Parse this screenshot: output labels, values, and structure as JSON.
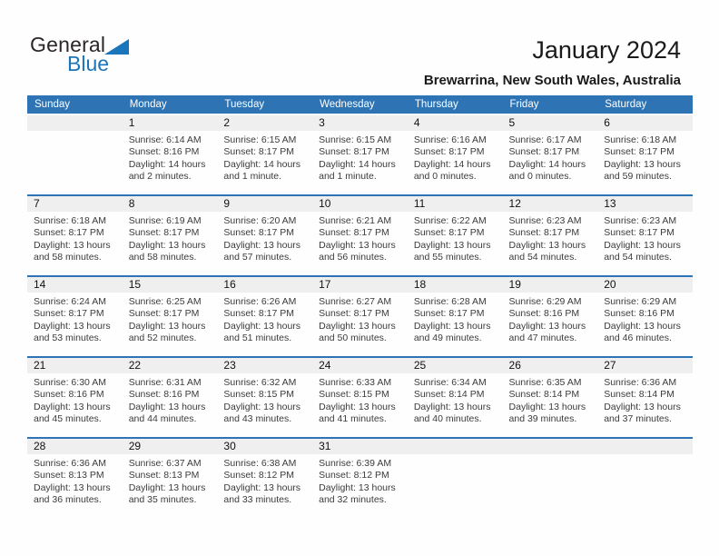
{
  "logo": {
    "general": "General",
    "blue": "Blue"
  },
  "header": {
    "title": "January 2024",
    "subtitle": "Brewarrina, New South Wales, Australia"
  },
  "colors": {
    "header_blue": "#2E74B5",
    "band_gray": "#EFEFEF",
    "logo_blue": "#1B75BB"
  },
  "labels": {
    "sunrise": "Sunrise:",
    "sunset": "Sunset:",
    "daylight": "Daylight:"
  },
  "weekdays": [
    "Sunday",
    "Monday",
    "Tuesday",
    "Wednesday",
    "Thursday",
    "Friday",
    "Saturday"
  ],
  "weeks": [
    [
      {},
      {
        "day": "1",
        "sunrise": "6:14 AM",
        "sunset": "8:16 PM",
        "daylight": "14 hours and 2 minutes."
      },
      {
        "day": "2",
        "sunrise": "6:15 AM",
        "sunset": "8:17 PM",
        "daylight": "14 hours and 1 minute."
      },
      {
        "day": "3",
        "sunrise": "6:15 AM",
        "sunset": "8:17 PM",
        "daylight": "14 hours and 1 minute."
      },
      {
        "day": "4",
        "sunrise": "6:16 AM",
        "sunset": "8:17 PM",
        "daylight": "14 hours and 0 minutes."
      },
      {
        "day": "5",
        "sunrise": "6:17 AM",
        "sunset": "8:17 PM",
        "daylight": "14 hours and 0 minutes."
      },
      {
        "day": "6",
        "sunrise": "6:18 AM",
        "sunset": "8:17 PM",
        "daylight": "13 hours and 59 minutes."
      }
    ],
    [
      {
        "day": "7",
        "sunrise": "6:18 AM",
        "sunset": "8:17 PM",
        "daylight": "13 hours and 58 minutes."
      },
      {
        "day": "8",
        "sunrise": "6:19 AM",
        "sunset": "8:17 PM",
        "daylight": "13 hours and 58 minutes."
      },
      {
        "day": "9",
        "sunrise": "6:20 AM",
        "sunset": "8:17 PM",
        "daylight": "13 hours and 57 minutes."
      },
      {
        "day": "10",
        "sunrise": "6:21 AM",
        "sunset": "8:17 PM",
        "daylight": "13 hours and 56 minutes."
      },
      {
        "day": "11",
        "sunrise": "6:22 AM",
        "sunset": "8:17 PM",
        "daylight": "13 hours and 55 minutes."
      },
      {
        "day": "12",
        "sunrise": "6:23 AM",
        "sunset": "8:17 PM",
        "daylight": "13 hours and 54 minutes."
      },
      {
        "day": "13",
        "sunrise": "6:23 AM",
        "sunset": "8:17 PM",
        "daylight": "13 hours and 54 minutes."
      }
    ],
    [
      {
        "day": "14",
        "sunrise": "6:24 AM",
        "sunset": "8:17 PM",
        "daylight": "13 hours and 53 minutes."
      },
      {
        "day": "15",
        "sunrise": "6:25 AM",
        "sunset": "8:17 PM",
        "daylight": "13 hours and 52 minutes."
      },
      {
        "day": "16",
        "sunrise": "6:26 AM",
        "sunset": "8:17 PM",
        "daylight": "13 hours and 51 minutes."
      },
      {
        "day": "17",
        "sunrise": "6:27 AM",
        "sunset": "8:17 PM",
        "daylight": "13 hours and 50 minutes."
      },
      {
        "day": "18",
        "sunrise": "6:28 AM",
        "sunset": "8:17 PM",
        "daylight": "13 hours and 49 minutes."
      },
      {
        "day": "19",
        "sunrise": "6:29 AM",
        "sunset": "8:16 PM",
        "daylight": "13 hours and 47 minutes."
      },
      {
        "day": "20",
        "sunrise": "6:29 AM",
        "sunset": "8:16 PM",
        "daylight": "13 hours and 46 minutes."
      }
    ],
    [
      {
        "day": "21",
        "sunrise": "6:30 AM",
        "sunset": "8:16 PM",
        "daylight": "13 hours and 45 minutes."
      },
      {
        "day": "22",
        "sunrise": "6:31 AM",
        "sunset": "8:16 PM",
        "daylight": "13 hours and 44 minutes."
      },
      {
        "day": "23",
        "sunrise": "6:32 AM",
        "sunset": "8:15 PM",
        "daylight": "13 hours and 43 minutes."
      },
      {
        "day": "24",
        "sunrise": "6:33 AM",
        "sunset": "8:15 PM",
        "daylight": "13 hours and 41 minutes."
      },
      {
        "day": "25",
        "sunrise": "6:34 AM",
        "sunset": "8:14 PM",
        "daylight": "13 hours and 40 minutes."
      },
      {
        "day": "26",
        "sunrise": "6:35 AM",
        "sunset": "8:14 PM",
        "daylight": "13 hours and 39 minutes."
      },
      {
        "day": "27",
        "sunrise": "6:36 AM",
        "sunset": "8:14 PM",
        "daylight": "13 hours and 37 minutes."
      }
    ],
    [
      {
        "day": "28",
        "sunrise": "6:36 AM",
        "sunset": "8:13 PM",
        "daylight": "13 hours and 36 minutes."
      },
      {
        "day": "29",
        "sunrise": "6:37 AM",
        "sunset": "8:13 PM",
        "daylight": "13 hours and 35 minutes."
      },
      {
        "day": "30",
        "sunrise": "6:38 AM",
        "sunset": "8:12 PM",
        "daylight": "13 hours and 33 minutes."
      },
      {
        "day": "31",
        "sunrise": "6:39 AM",
        "sunset": "8:12 PM",
        "daylight": "13 hours and 32 minutes."
      },
      {},
      {},
      {}
    ]
  ]
}
